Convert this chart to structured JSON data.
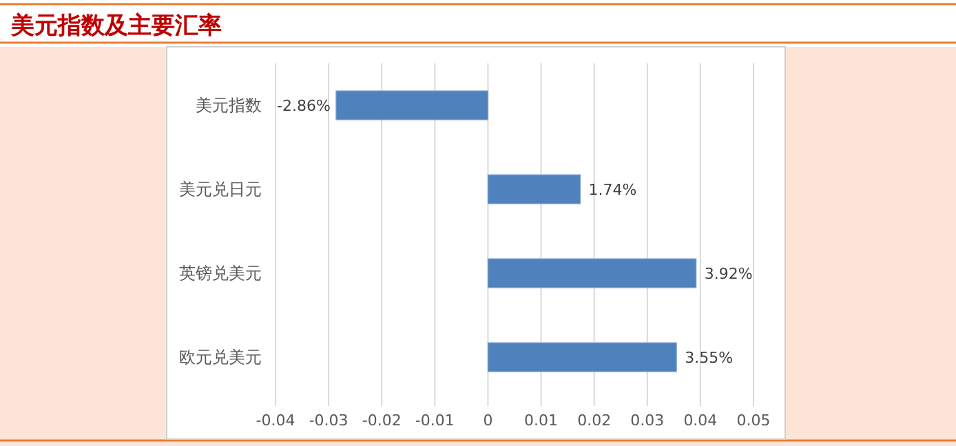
{
  "chart_data": {
    "type": "bar",
    "orientation": "horizontal",
    "title": "美元指数及主要汇率",
    "categories": [
      "美元指数",
      "美元兑日元",
      "英镑兑美元",
      "欧元兑美元"
    ],
    "values": [
      -0.0286,
      0.0174,
      0.0392,
      0.0355
    ],
    "value_labels": [
      "-2.86%",
      "1.74%",
      "3.92%",
      "3.55%"
    ],
    "color": "#4f81bd",
    "xlim": [
      -0.04,
      0.05
    ],
    "xticks": [
      -0.04,
      -0.03,
      -0.02,
      -0.01,
      0,
      0.01,
      0.02,
      0.03,
      0.04,
      0.05
    ],
    "grid": "x"
  }
}
